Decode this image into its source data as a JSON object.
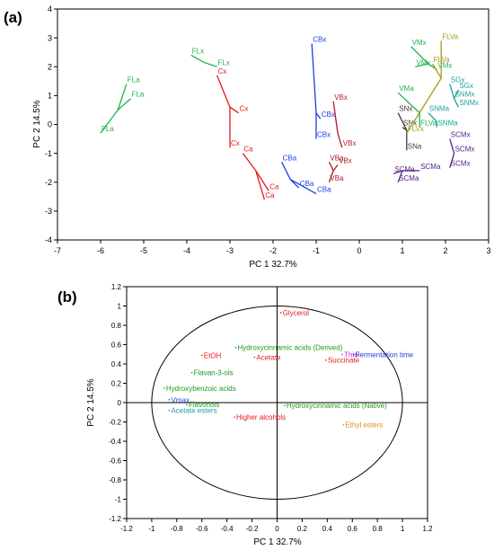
{
  "chart_data": [
    {
      "panel_label": "(a)",
      "type": "scatter",
      "subtype": "pca-score-plot",
      "xlabel": "PC 1  32.7%",
      "ylabel": "PC 2  14.5%",
      "xlim": [
        -7,
        3
      ],
      "ylim": [
        -4,
        4
      ],
      "xticks": [
        -7,
        -6,
        -5,
        -4,
        -3,
        -2,
        -1,
        0,
        1,
        2,
        3
      ],
      "yticks": [
        -4,
        -3,
        -2,
        -1,
        0,
        1,
        2,
        3,
        4
      ],
      "groups": [
        {
          "color": "#22b14c",
          "center": [
            -5.6,
            0.5
          ],
          "points": [
            {
              "label": "FLa",
              "x": -5.4,
              "y": 1.4
            },
            {
              "label": "FLa",
              "x": -5.3,
              "y": 0.9
            },
            {
              "label": "FLa",
              "x": -6.0,
              "y": -0.3
            }
          ]
        },
        {
          "color": "#22b14c",
          "center": [
            -3.6,
            2.15
          ],
          "points": [
            {
              "label": "FLx",
              "x": -3.9,
              "y": 2.4
            },
            {
              "label": "FLx",
              "x": -3.3,
              "y": 2.0
            }
          ]
        },
        {
          "color": "#e31a1c",
          "center": [
            -3.0,
            0.6
          ],
          "points": [
            {
              "label": "Cx",
              "x": -3.3,
              "y": 1.7
            },
            {
              "label": "Cx",
              "x": -2.8,
              "y": 0.4
            },
            {
              "label": "Cx",
              "x": -3.0,
              "y": -0.8
            }
          ]
        },
        {
          "color": "#e31a1c",
          "center": [
            -2.4,
            -1.6
          ],
          "points": [
            {
              "label": "Ca",
              "x": -2.7,
              "y": -1.0
            },
            {
              "label": "Ca",
              "x": -2.1,
              "y": -2.3
            },
            {
              "label": "Ca",
              "x": -2.2,
              "y": -2.6
            }
          ]
        },
        {
          "color": "#1f3fe0",
          "center": [
            -1.6,
            -1.9
          ],
          "points": [
            {
              "label": "CBa",
              "x": -1.8,
              "y": -1.3
            },
            {
              "label": "CBa",
              "x": -1.4,
              "y": -2.2
            },
            {
              "label": "CBa",
              "x": -1.0,
              "y": -2.4
            }
          ]
        },
        {
          "color": "#1f3fe0",
          "center": [
            -1.0,
            0.4
          ],
          "points": [
            {
              "label": "CBx",
              "x": -1.1,
              "y": 2.8
            },
            {
              "label": "CBx",
              "x": -0.9,
              "y": 0.2
            },
            {
              "label": "CBx",
              "x": -1.0,
              "y": -0.5
            }
          ]
        },
        {
          "color": "#b2182b",
          "center": [
            -0.5,
            -0.3
          ],
          "points": [
            {
              "label": "VBx",
              "x": -0.6,
              "y": 0.8
            },
            {
              "label": "VBx",
              "x": -0.4,
              "y": -0.8
            }
          ]
        },
        {
          "color": "#b2182b",
          "center": [
            -0.6,
            -1.6
          ],
          "points": [
            {
              "label": "VBa",
              "x": -0.7,
              "y": -1.3
            },
            {
              "label": "VBx",
              "x": -0.5,
              "y": -1.4
            },
            {
              "label": "VBa",
              "x": -0.7,
              "y": -2.0
            }
          ]
        },
        {
          "color": "#55218a",
          "center": [
            1.0,
            -1.6
          ],
          "points": [
            {
              "label": "SCMa",
              "x": 0.8,
              "y": -1.7
            },
            {
              "label": "SCMa",
              "x": 0.9,
              "y": -2.0
            },
            {
              "label": "SCMa",
              "x": 1.4,
              "y": -1.6
            }
          ]
        },
        {
          "color": "#55218a",
          "center": [
            2.2,
            -1.0
          ],
          "points": [
            {
              "label": "SCMx",
              "x": 2.1,
              "y": -0.5
            },
            {
              "label": "SCMx",
              "x": 2.2,
              "y": -1.0
            },
            {
              "label": "SCMx",
              "x": 2.1,
              "y": -1.5
            }
          ]
        },
        {
          "color": "#3c3c3c",
          "center": [
            1.1,
            -0.2
          ],
          "points": [
            {
              "label": "SNx",
              "x": 0.9,
              "y": 0.4
            },
            {
              "label": "SNx",
              "x": 1.0,
              "y": -0.1
            },
            {
              "label": "SNa",
              "x": 1.1,
              "y": -0.9
            }
          ]
        },
        {
          "color": "#1aa39a",
          "center": [
            2.2,
            0.9
          ],
          "points": [
            {
              "label": "SGx",
              "x": 2.1,
              "y": 1.4
            },
            {
              "label": "SGx",
              "x": 2.3,
              "y": 1.2
            },
            {
              "label": "SNMx",
              "x": 2.2,
              "y": 0.9
            },
            {
              "label": "SNMx",
              "x": 2.3,
              "y": 0.6
            }
          ]
        },
        {
          "color": "#1aa39a",
          "center": [
            1.8,
            0.1
          ],
          "points": [
            {
              "label": "SNMa",
              "x": 1.6,
              "y": 0.4
            },
            {
              "label": "SNMa",
              "x": 1.8,
              "y": -0.1
            }
          ]
        },
        {
          "color": "#22b14c",
          "center": [
            1.6,
            2.1
          ],
          "points": [
            {
              "label": "VMx",
              "x": 1.2,
              "y": 2.7
            },
            {
              "label": "VMx",
              "x": 1.3,
              "y": 2.0
            },
            {
              "label": "VMx",
              "x": 1.8,
              "y": 1.9
            }
          ]
        },
        {
          "color": "#22b14c",
          "center": [
            1.4,
            0.4
          ],
          "points": [
            {
              "label": "VMa",
              "x": 0.9,
              "y": 1.1
            },
            {
              "label": "FLVa",
              "x": 1.4,
              "y": -0.1
            }
          ]
        },
        {
          "color": "#a89b18",
          "center": [
            1.9,
            1.6
          ],
          "points": [
            {
              "label": "FLVa",
              "x": 1.9,
              "y": 2.9
            },
            {
              "label": "FLVa",
              "x": 1.7,
              "y": 2.1
            },
            {
              "label": "FLVx",
              "x": 1.1,
              "y": -0.3
            }
          ]
        }
      ]
    },
    {
      "panel_label": "(b)",
      "type": "scatter",
      "subtype": "pca-correlation-circle",
      "xlabel": "PC 1  32.7%",
      "ylabel": "PC 2  14.5%",
      "xlim": [
        -1.2,
        1.2
      ],
      "ylim": [
        -1.2,
        1.2
      ],
      "xticks": [
        -1.2,
        -1,
        -0.8,
        -0.6,
        -0.4,
        -0.2,
        0,
        0.2,
        0.4,
        0.6,
        0.8,
        1,
        1.2
      ],
      "yticks": [
        -1.2,
        -1,
        -0.8,
        -0.6,
        -0.4,
        -0.2,
        0,
        0.2,
        0.4,
        0.6,
        0.8,
        1,
        1.2
      ],
      "points": [
        {
          "label": "Glycerol",
          "x": 0.03,
          "y": 0.93,
          "color": "#e31a1c"
        },
        {
          "label": "Hydroxycinnamic acids (Derived)",
          "x": -0.33,
          "y": 0.57,
          "color": "#1e9a1e"
        },
        {
          "label": "EtOH",
          "x": -0.6,
          "y": 0.49,
          "color": "#e31a1c"
        },
        {
          "label": "Acetate",
          "x": -0.18,
          "y": 0.47,
          "color": "#e31a1c"
        },
        {
          "label": "Thiol",
          "x": 0.52,
          "y": 0.5,
          "color": "#d61fd6"
        },
        {
          "label": "Fermentation time",
          "x": 0.61,
          "y": 0.5,
          "color": "#1f3fe0"
        },
        {
          "label": "Succinate",
          "x": 0.39,
          "y": 0.44,
          "color": "#e31a1c"
        },
        {
          "label": "Flavan-3-ols",
          "x": -0.68,
          "y": 0.31,
          "color": "#1e9a1e"
        },
        {
          "label": "Hydroxybenzoic acids",
          "x": -0.9,
          "y": 0.15,
          "color": "#1e9a1e"
        },
        {
          "label": "Vmax",
          "x": -0.86,
          "y": 0.03,
          "color": "#1f3fe0"
        },
        {
          "label": "Flavonols",
          "x": -0.72,
          "y": -0.02,
          "color": "#1e9a1e"
        },
        {
          "label": "Acetate esters",
          "x": -0.86,
          "y": -0.08,
          "color": "#1aa39a"
        },
        {
          "label": "Hydroxycinnamic acids (Native)",
          "x": 0.06,
          "y": -0.03,
          "color": "#1e9a1e"
        },
        {
          "label": "Higher alcohols",
          "x": -0.34,
          "y": -0.15,
          "color": "#e31a1c"
        },
        {
          "label": "Ethyl esters",
          "x": 0.53,
          "y": -0.23,
          "color": "#e08a2c"
        }
      ]
    }
  ]
}
